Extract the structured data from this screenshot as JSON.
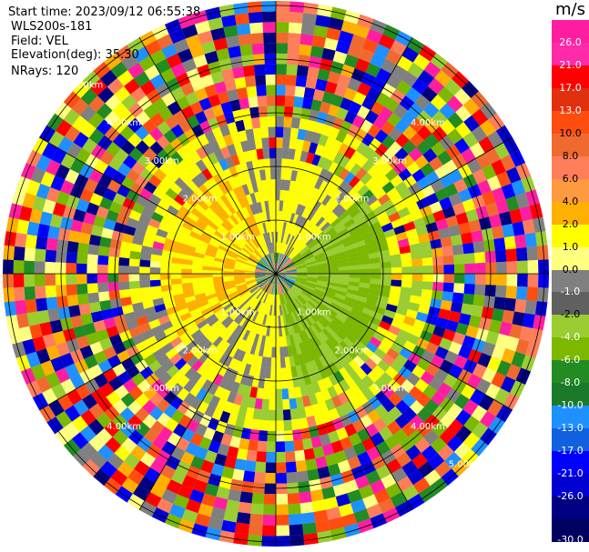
{
  "header": {
    "start_time": "Start time: 2023/09/12 06:55:38",
    "instrument": "WLS200s-181",
    "field": "Field: VEL",
    "elevation": "Elevation(deg): 35.30",
    "nrays": "NRays: 120"
  },
  "chart_data": {
    "type": "heatmap",
    "subtype": "ppi-polar",
    "field": "VEL",
    "units": "m/s",
    "nrays": 120,
    "range_rings_km": [
      1,
      2,
      3,
      4,
      5
    ],
    "ring_labels": [
      "1.00km",
      "2.00km",
      "3.00km",
      "4.00km",
      "5.00km",
      "1.00km",
      "2.00km",
      "3.00km",
      "4.00km",
      "1.00km",
      "2.00km",
      "3.00km",
      "4.00km",
      "5.00km",
      "1.00km",
      "2.00km",
      "3.00km",
      "4.00km"
    ],
    "colorbar": {
      "title": "m/s",
      "ticks": [
        "26.0",
        "21.0",
        "17.0",
        "13.0",
        "10.0",
        "8.0",
        "6.0",
        "4.0",
        "2.0",
        "1.0",
        "0.0",
        "-1.0",
        "-2.0",
        "-4.0",
        "-6.0",
        "-8.0",
        "-10.0",
        "-13.0",
        "-17.0",
        "-21.0",
        "-26.0",
        "-30.0"
      ],
      "colors": [
        "#ff1ea0",
        "#ff2aa8",
        "#ff0000",
        "#e03010",
        "#ff4d10",
        "#f06a30",
        "#ff7e5a",
        "#ff9a40",
        "#ffb000",
        "#ffff00",
        "#ffff80",
        "#808080",
        "#606060",
        "#9acd32",
        "#7cb800",
        "#228b22",
        "#1a7a2a",
        "#1e90ff",
        "#1060e0",
        "#0000ff",
        "#0000d0",
        "#000080",
        "#000060"
      ]
    }
  }
}
